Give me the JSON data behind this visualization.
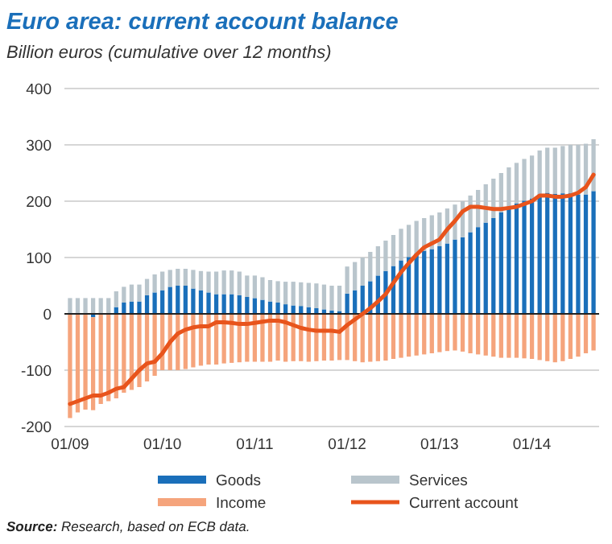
{
  "chart_data": {
    "type": "bar",
    "stacked": true,
    "title": "Euro area: current account balance",
    "subtitle": "Billion euros (cumulative over 12 months)",
    "categories": [
      "01/09",
      null,
      null,
      null,
      null,
      null,
      null,
      null,
      null,
      null,
      null,
      null,
      "01/10",
      null,
      null,
      null,
      null,
      null,
      null,
      null,
      null,
      null,
      null,
      null,
      "01/11",
      null,
      null,
      null,
      null,
      null,
      null,
      null,
      null,
      null,
      null,
      null,
      "01/12",
      null,
      null,
      null,
      null,
      null,
      null,
      null,
      null,
      null,
      null,
      null,
      "01/13",
      null,
      null,
      null,
      null,
      null,
      null,
      null,
      null,
      null,
      null,
      null,
      "01/14",
      null,
      null,
      null,
      null,
      null,
      null,
      null,
      null
    ],
    "ylim": [
      -200,
      400
    ],
    "yticks": [
      -200,
      -100,
      0,
      100,
      200,
      300,
      400
    ],
    "grid": "y",
    "legend": "bottom",
    "series": [
      {
        "name": "Goods",
        "color": "#1a6fba",
        "values": [
          0,
          0,
          0,
          -6,
          0,
          0,
          12,
          20,
          22,
          22,
          33,
          38,
          42,
          48,
          50,
          50,
          45,
          42,
          38,
          35,
          35,
          35,
          33,
          30,
          28,
          25,
          22,
          20,
          17,
          15,
          14,
          12,
          10,
          8,
          6,
          5,
          36,
          42,
          50,
          58,
          68,
          76,
          85,
          95,
          101,
          107,
          112,
          115,
          120,
          125,
          132,
          136,
          145,
          154,
          162,
          170,
          180,
          188,
          196,
          201,
          205,
          212,
          215,
          213,
          214,
          214,
          212,
          212,
          218
        ]
      },
      {
        "name": "Services",
        "color": "#b9c5cc",
        "values": [
          28,
          28,
          28,
          28,
          28,
          28,
          28,
          28,
          30,
          30,
          29,
          32,
          33,
          30,
          30,
          30,
          33,
          34,
          37,
          40,
          42,
          42,
          42,
          38,
          40,
          40,
          38,
          38,
          40,
          42,
          42,
          43,
          44,
          44,
          44,
          45,
          48,
          50,
          50,
          52,
          52,
          54,
          55,
          56,
          57,
          58,
          58,
          60,
          60,
          62,
          62,
          64,
          65,
          66,
          68,
          70,
          70,
          72,
          72,
          74,
          76,
          78,
          80,
          82,
          84,
          86,
          88,
          90,
          92
        ]
      },
      {
        "name": "Income",
        "color": "#f5a47c",
        "values": [
          -185,
          -175,
          -170,
          -165,
          -160,
          -155,
          -150,
          -140,
          -135,
          -130,
          -120,
          -110,
          -100,
          -100,
          -100,
          -98,
          -95,
          -92,
          -90,
          -90,
          -88,
          -87,
          -86,
          -85,
          -85,
          -85,
          -85,
          -83,
          -85,
          -84,
          -84,
          -85,
          -84,
          -83,
          -83,
          -82,
          -82,
          -84,
          -86,
          -85,
          -84,
          -83,
          -80,
          -78,
          -76,
          -74,
          -72,
          -70,
          -68,
          -66,
          -65,
          -67,
          -70,
          -72,
          -74,
          -76,
          -78,
          -78,
          -78,
          -79,
          -80,
          -82,
          -84,
          -86,
          -84,
          -80,
          -76,
          -70,
          -65
        ]
      },
      {
        "name": "Current account",
        "type": "line",
        "color": "#e8541c",
        "values": [
          -160,
          -155,
          -150,
          -145,
          -145,
          -140,
          -133,
          -130,
          -115,
          -100,
          -88,
          -85,
          -70,
          -50,
          -35,
          -28,
          -24,
          -22,
          -22,
          -15,
          -15,
          -16,
          -18,
          -18,
          -16,
          -14,
          -12,
          -12,
          -15,
          -20,
          -25,
          -28,
          -30,
          -30,
          -30,
          -32,
          -20,
          -10,
          0,
          10,
          22,
          35,
          55,
          74,
          90,
          105,
          118,
          125,
          132,
          150,
          165,
          182,
          190,
          190,
          188,
          186,
          186,
          188,
          190,
          195,
          200,
          210,
          210,
          208,
          208,
          210,
          215,
          225,
          247
        ]
      }
    ],
    "annotations": [
      "Source: Research, based on ECB data."
    ]
  }
}
